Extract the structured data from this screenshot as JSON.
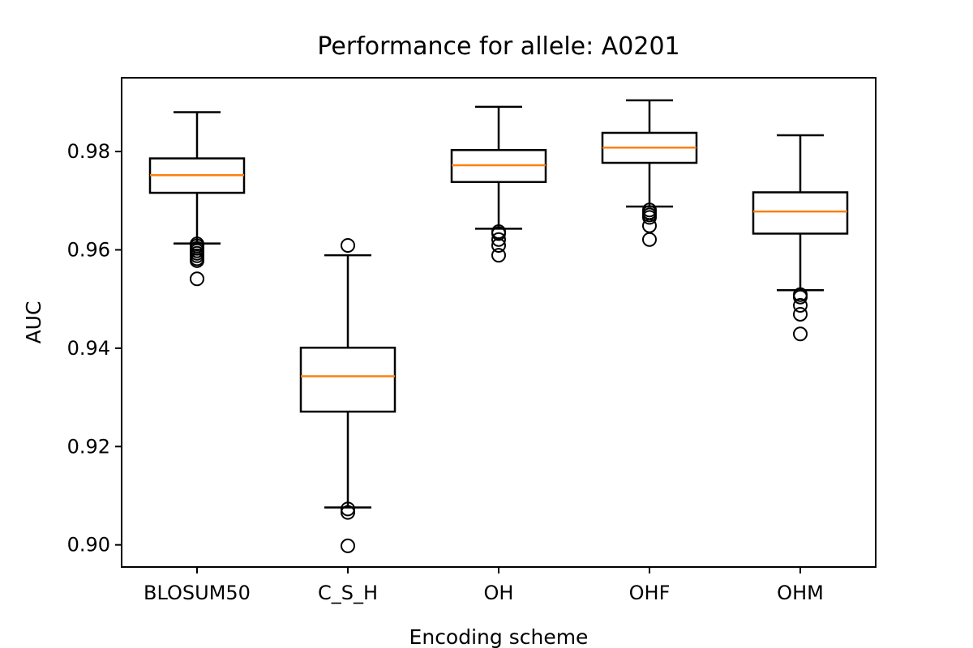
{
  "chart_data": {
    "type": "box",
    "title": "Performance for allele: A0201",
    "xlabel": "Encoding scheme",
    "ylabel": "AUC",
    "ylim": [
      0.8955,
      0.995
    ],
    "yticks": [
      0.9,
      0.92,
      0.94,
      0.96,
      0.98
    ],
    "ytick_labels": [
      "0.90",
      "0.92",
      "0.94",
      "0.96",
      "0.98"
    ],
    "grid": false,
    "colors": {
      "box": "#000000",
      "median": "#ff7f0e"
    },
    "categories": [
      "BLOSUM50",
      "C_S_H",
      "OH",
      "OHF",
      "OHM"
    ],
    "boxes": [
      {
        "name": "BLOSUM50",
        "whislo": 0.9613,
        "q1": 0.9716,
        "med": 0.9752,
        "q3": 0.9786,
        "whishi": 0.988,
        "fliers": [
          0.9612,
          0.9608,
          0.9603,
          0.9598,
          0.9593,
          0.9588,
          0.9582,
          0.9578,
          0.9541
        ]
      },
      {
        "name": "C_S_H",
        "whislo": 0.9076,
        "q1": 0.9271,
        "med": 0.9343,
        "q3": 0.9401,
        "whishi": 0.9589,
        "fliers": [
          0.9609,
          0.9073,
          0.9066,
          0.8998
        ]
      },
      {
        "name": "OH",
        "whislo": 0.9643,
        "q1": 0.9738,
        "med": 0.9772,
        "q3": 0.9803,
        "whishi": 0.9891,
        "fliers": [
          0.9637,
          0.9633,
          0.9621,
          0.9609,
          0.9589
        ]
      },
      {
        "name": "OHF",
        "whislo": 0.9688,
        "q1": 0.9777,
        "med": 0.9808,
        "q3": 0.9838,
        "whishi": 0.9904,
        "fliers": [
          0.9681,
          0.9676,
          0.9671,
          0.9666,
          0.9649,
          0.9621
        ]
      },
      {
        "name": "OHM",
        "whislo": 0.9518,
        "q1": 0.9633,
        "med": 0.9678,
        "q3": 0.9717,
        "whishi": 0.9833,
        "fliers": [
          0.9509,
          0.9504,
          0.9487,
          0.9469,
          0.9429
        ]
      }
    ]
  }
}
